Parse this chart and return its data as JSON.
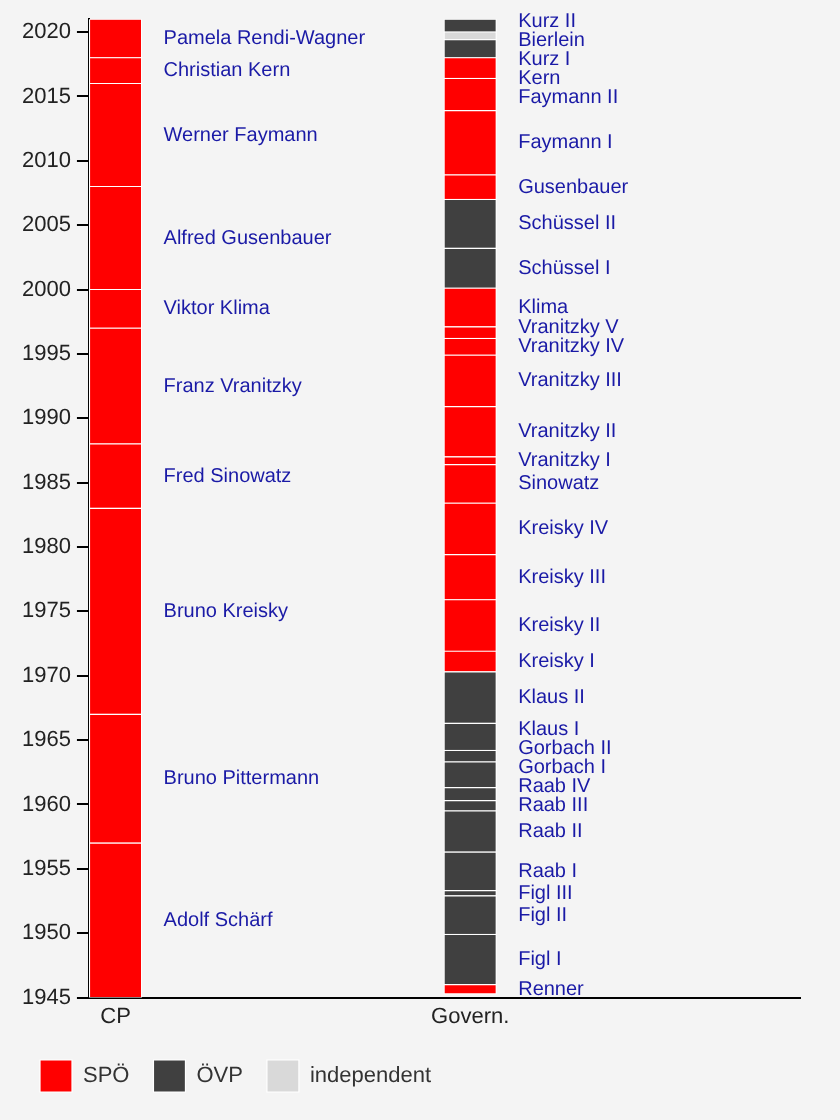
{
  "chart_data": {
    "type": "bar",
    "categories": [
      "CP",
      "Govern."
    ],
    "ylim": [
      1945,
      2021
    ],
    "yticks": [
      1945,
      1950,
      1955,
      1960,
      1965,
      1970,
      1975,
      1980,
      1985,
      1990,
      1995,
      2000,
      2005,
      2010,
      2015,
      2020
    ],
    "grid": false,
    "legend": "bottom left",
    "series": [
      {
        "name": "SPÖ",
        "color": "#ff0000",
        "values": [
          null,
          null
        ]
      },
      {
        "name": "ÖVP",
        "color": "#404040",
        "values": [
          null,
          null
        ]
      },
      {
        "name": "independent",
        "color": "#d9d9d9",
        "values": [
          null,
          null
        ]
      },
      {
        "name": "Adolf Schärf",
        "color": "#ff0000",
        "base": [
          1945,
          null
        ],
        "values": [
          12,
          null
        ]
      },
      {
        "name": "Bruno Pittermann",
        "color": "#ff0000",
        "base": [
          1957,
          null
        ],
        "values": [
          10,
          null
        ]
      },
      {
        "name": "Bruno Kreisky",
        "color": "#ff0000",
        "base": [
          1967,
          null
        ],
        "values": [
          16,
          null
        ]
      },
      {
        "name": "Fred Sinowatz",
        "color": "#ff0000",
        "base": [
          1983,
          null
        ],
        "values": [
          5,
          null
        ]
      },
      {
        "name": "Franz Vranitzky",
        "color": "#ff0000",
        "base": [
          1988,
          null
        ],
        "values": [
          9,
          null
        ]
      },
      {
        "name": "Viktor Klima",
        "color": "#ff0000",
        "base": [
          1997,
          null
        ],
        "values": [
          3,
          null
        ]
      },
      {
        "name": "Alfred Gusenbauer",
        "color": "#ff0000",
        "base": [
          2000,
          null
        ],
        "values": [
          8,
          null
        ]
      },
      {
        "name": "Werner Faymann",
        "color": "#ff0000",
        "base": [
          2008,
          null
        ],
        "values": [
          8,
          null
        ]
      },
      {
        "name": "Christian Kern",
        "color": "#ff0000",
        "base": [
          2016,
          null
        ],
        "values": [
          2,
          null
        ]
      },
      {
        "name": "Pamela Rendi-Wagner",
        "color": "#ff0000",
        "base": [
          2018,
          null
        ],
        "values": [
          3,
          null
        ]
      },
      {
        "name": "Renner",
        "color": "#ff0000",
        "base": [
          null,
          1945.3
        ],
        "values": [
          null,
          0.7
        ]
      },
      {
        "name": "Figl I",
        "color": "#404040",
        "base": [
          null,
          1946
        ],
        "values": [
          null,
          3.9
        ]
      },
      {
        "name": "Figl II",
        "color": "#404040",
        "base": [
          null,
          1949.9
        ],
        "values": [
          null,
          3
        ]
      },
      {
        "name": "Figl III",
        "color": "#404040",
        "base": [
          null,
          1952.9
        ],
        "values": [
          null,
          0.4
        ]
      },
      {
        "name": "Raab I",
        "color": "#404040",
        "base": [
          null,
          1953.3
        ],
        "values": [
          null,
          3
        ]
      },
      {
        "name": "Raab II",
        "color": "#404040",
        "base": [
          null,
          1956.3
        ],
        "values": [
          null,
          3.2
        ]
      },
      {
        "name": "Raab III",
        "color": "#404040",
        "base": [
          null,
          1959.5
        ],
        "values": [
          null,
          0.8
        ]
      },
      {
        "name": "Raab IV",
        "color": "#404040",
        "base": [
          null,
          1960.3
        ],
        "values": [
          null,
          1
        ]
      },
      {
        "name": "Gorbach I",
        "color": "#404040",
        "base": [
          null,
          1961.3
        ],
        "values": [
          null,
          2
        ]
      },
      {
        "name": "Gorbach II",
        "color": "#404040",
        "base": [
          null,
          1963.3
        ],
        "values": [
          null,
          0.9
        ]
      },
      {
        "name": "Klaus I",
        "color": "#404040",
        "base": [
          null,
          1964.2
        ],
        "values": [
          null,
          2.1
        ]
      },
      {
        "name": "Klaus II",
        "color": "#404040",
        "base": [
          null,
          1966.3
        ],
        "values": [
          null,
          4
        ]
      },
      {
        "name": "Kreisky I",
        "color": "#ff0000",
        "base": [
          null,
          1970.3
        ],
        "values": [
          null,
          1.6
        ]
      },
      {
        "name": "Kreisky II",
        "color": "#ff0000",
        "base": [
          null,
          1971.9
        ],
        "values": [
          null,
          4
        ]
      },
      {
        "name": "Kreisky III",
        "color": "#ff0000",
        "base": [
          null,
          1975.9
        ],
        "values": [
          null,
          3.5
        ]
      },
      {
        "name": "Kreisky IV",
        "color": "#ff0000",
        "base": [
          null,
          1979.4
        ],
        "values": [
          null,
          4
        ]
      },
      {
        "name": "Sinowatz",
        "color": "#ff0000",
        "base": [
          null,
          1983.4
        ],
        "values": [
          null,
          3
        ]
      },
      {
        "name": "Vranitzky I",
        "color": "#ff0000",
        "base": [
          null,
          1986.4
        ],
        "values": [
          null,
          0.6
        ]
      },
      {
        "name": "Vranitzky II",
        "color": "#ff0000",
        "base": [
          null,
          1987
        ],
        "values": [
          null,
          3.9
        ]
      },
      {
        "name": "Vranitzky III",
        "color": "#ff0000",
        "base": [
          null,
          1990.9
        ],
        "values": [
          null,
          4
        ]
      },
      {
        "name": "Vranitzky IV",
        "color": "#ff0000",
        "base": [
          null,
          1994.9
        ],
        "values": [
          null,
          1.3
        ]
      },
      {
        "name": "Vranitzky V",
        "color": "#ff0000",
        "base": [
          null,
          1996.2
        ],
        "values": [
          null,
          0.9
        ]
      },
      {
        "name": "Klima",
        "color": "#ff0000",
        "base": [
          null,
          1997.1
        ],
        "values": [
          null,
          3
        ]
      },
      {
        "name": "Schüssel I",
        "color": "#404040",
        "base": [
          null,
          2000.1
        ],
        "values": [
          null,
          3.1
        ]
      },
      {
        "name": "Schüssel II",
        "color": "#404040",
        "base": [
          null,
          2003.2
        ],
        "values": [
          null,
          3.8
        ]
      },
      {
        "name": "Gusenbauer",
        "color": "#ff0000",
        "base": [
          null,
          2007
        ],
        "values": [
          null,
          1.9
        ]
      },
      {
        "name": "Faymann I",
        "color": "#ff0000",
        "base": [
          null,
          2008.9
        ],
        "values": [
          null,
          5
        ]
      },
      {
        "name": "Faymann II",
        "color": "#ff0000",
        "base": [
          null,
          2013.9
        ],
        "values": [
          null,
          2.5
        ]
      },
      {
        "name": "Kern",
        "color": "#ff0000",
        "base": [
          null,
          2016.4
        ],
        "values": [
          null,
          1.6
        ]
      },
      {
        "name": "Kurz I",
        "color": "#404040",
        "base": [
          null,
          2018
        ],
        "values": [
          null,
          1.4
        ]
      },
      {
        "name": "Bierlein",
        "color": "#d9d9d9",
        "base": [
          null,
          2019.4
        ],
        "values": [
          null,
          0.6
        ]
      },
      {
        "name": "Kurz II",
        "color": "#404040",
        "base": [
          null,
          2020
        ],
        "values": [
          null,
          1
        ]
      }
    ]
  }
}
